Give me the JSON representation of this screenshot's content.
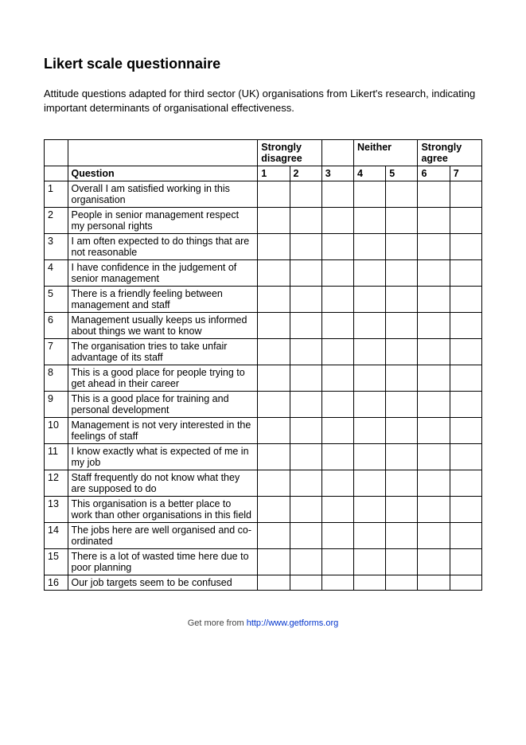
{
  "title": "Likert scale questionnaire",
  "intro": "Attitude questions adapted for third sector (UK) organisations from Likert's research, indicating important determinants of organisational effectiveness.",
  "header": {
    "strongly_disagree": "Strongly disagree",
    "neither": "Neither",
    "strongly_agree": "Strongly agree",
    "question": "Question",
    "s1": "1",
    "s2": "2",
    "s3": "3",
    "s4": "4",
    "s5": "5",
    "s6": "6",
    "s7": "7"
  },
  "rows": [
    {
      "n": "1",
      "q": "Overall I am satisfied working in this organisation"
    },
    {
      "n": "2",
      "q": "People in senior management respect my personal rights"
    },
    {
      "n": "3",
      "q": "I am often expected to do things that are not reasonable"
    },
    {
      "n": "4",
      "q": "I have confidence in the judgement of senior management"
    },
    {
      "n": "5",
      "q": "There is a friendly feeling between management and staff"
    },
    {
      "n": "6",
      "q": "Management usually keeps us informed about things we want to know"
    },
    {
      "n": "7",
      "q": "The organisation tries to take unfair advantage of its staff"
    },
    {
      "n": "8",
      "q": "This is a good place for people trying to get ahead in their career"
    },
    {
      "n": "9",
      "q": "This is a good place for training and personal development"
    },
    {
      "n": "10",
      "q": "Management is not very interested in the feelings of staff"
    },
    {
      "n": "11",
      "q": "I know exactly what is expected of me in my job"
    },
    {
      "n": "12",
      "q": "Staff frequently do not know what they are supposed to do"
    },
    {
      "n": "13",
      "q": "This organisation is a better place to work than other organisations in this field"
    },
    {
      "n": "14",
      "q": "The jobs here are well organised and co-ordinated"
    },
    {
      "n": "15",
      "q": "There is a lot of wasted time here due to poor planning"
    },
    {
      "n": "16",
      "q": "Our job targets seem to be confused"
    }
  ],
  "footer": {
    "text": "Get more from ",
    "link_text": "http://www.getforms.org",
    "link_href": "http://www.getforms.org"
  }
}
